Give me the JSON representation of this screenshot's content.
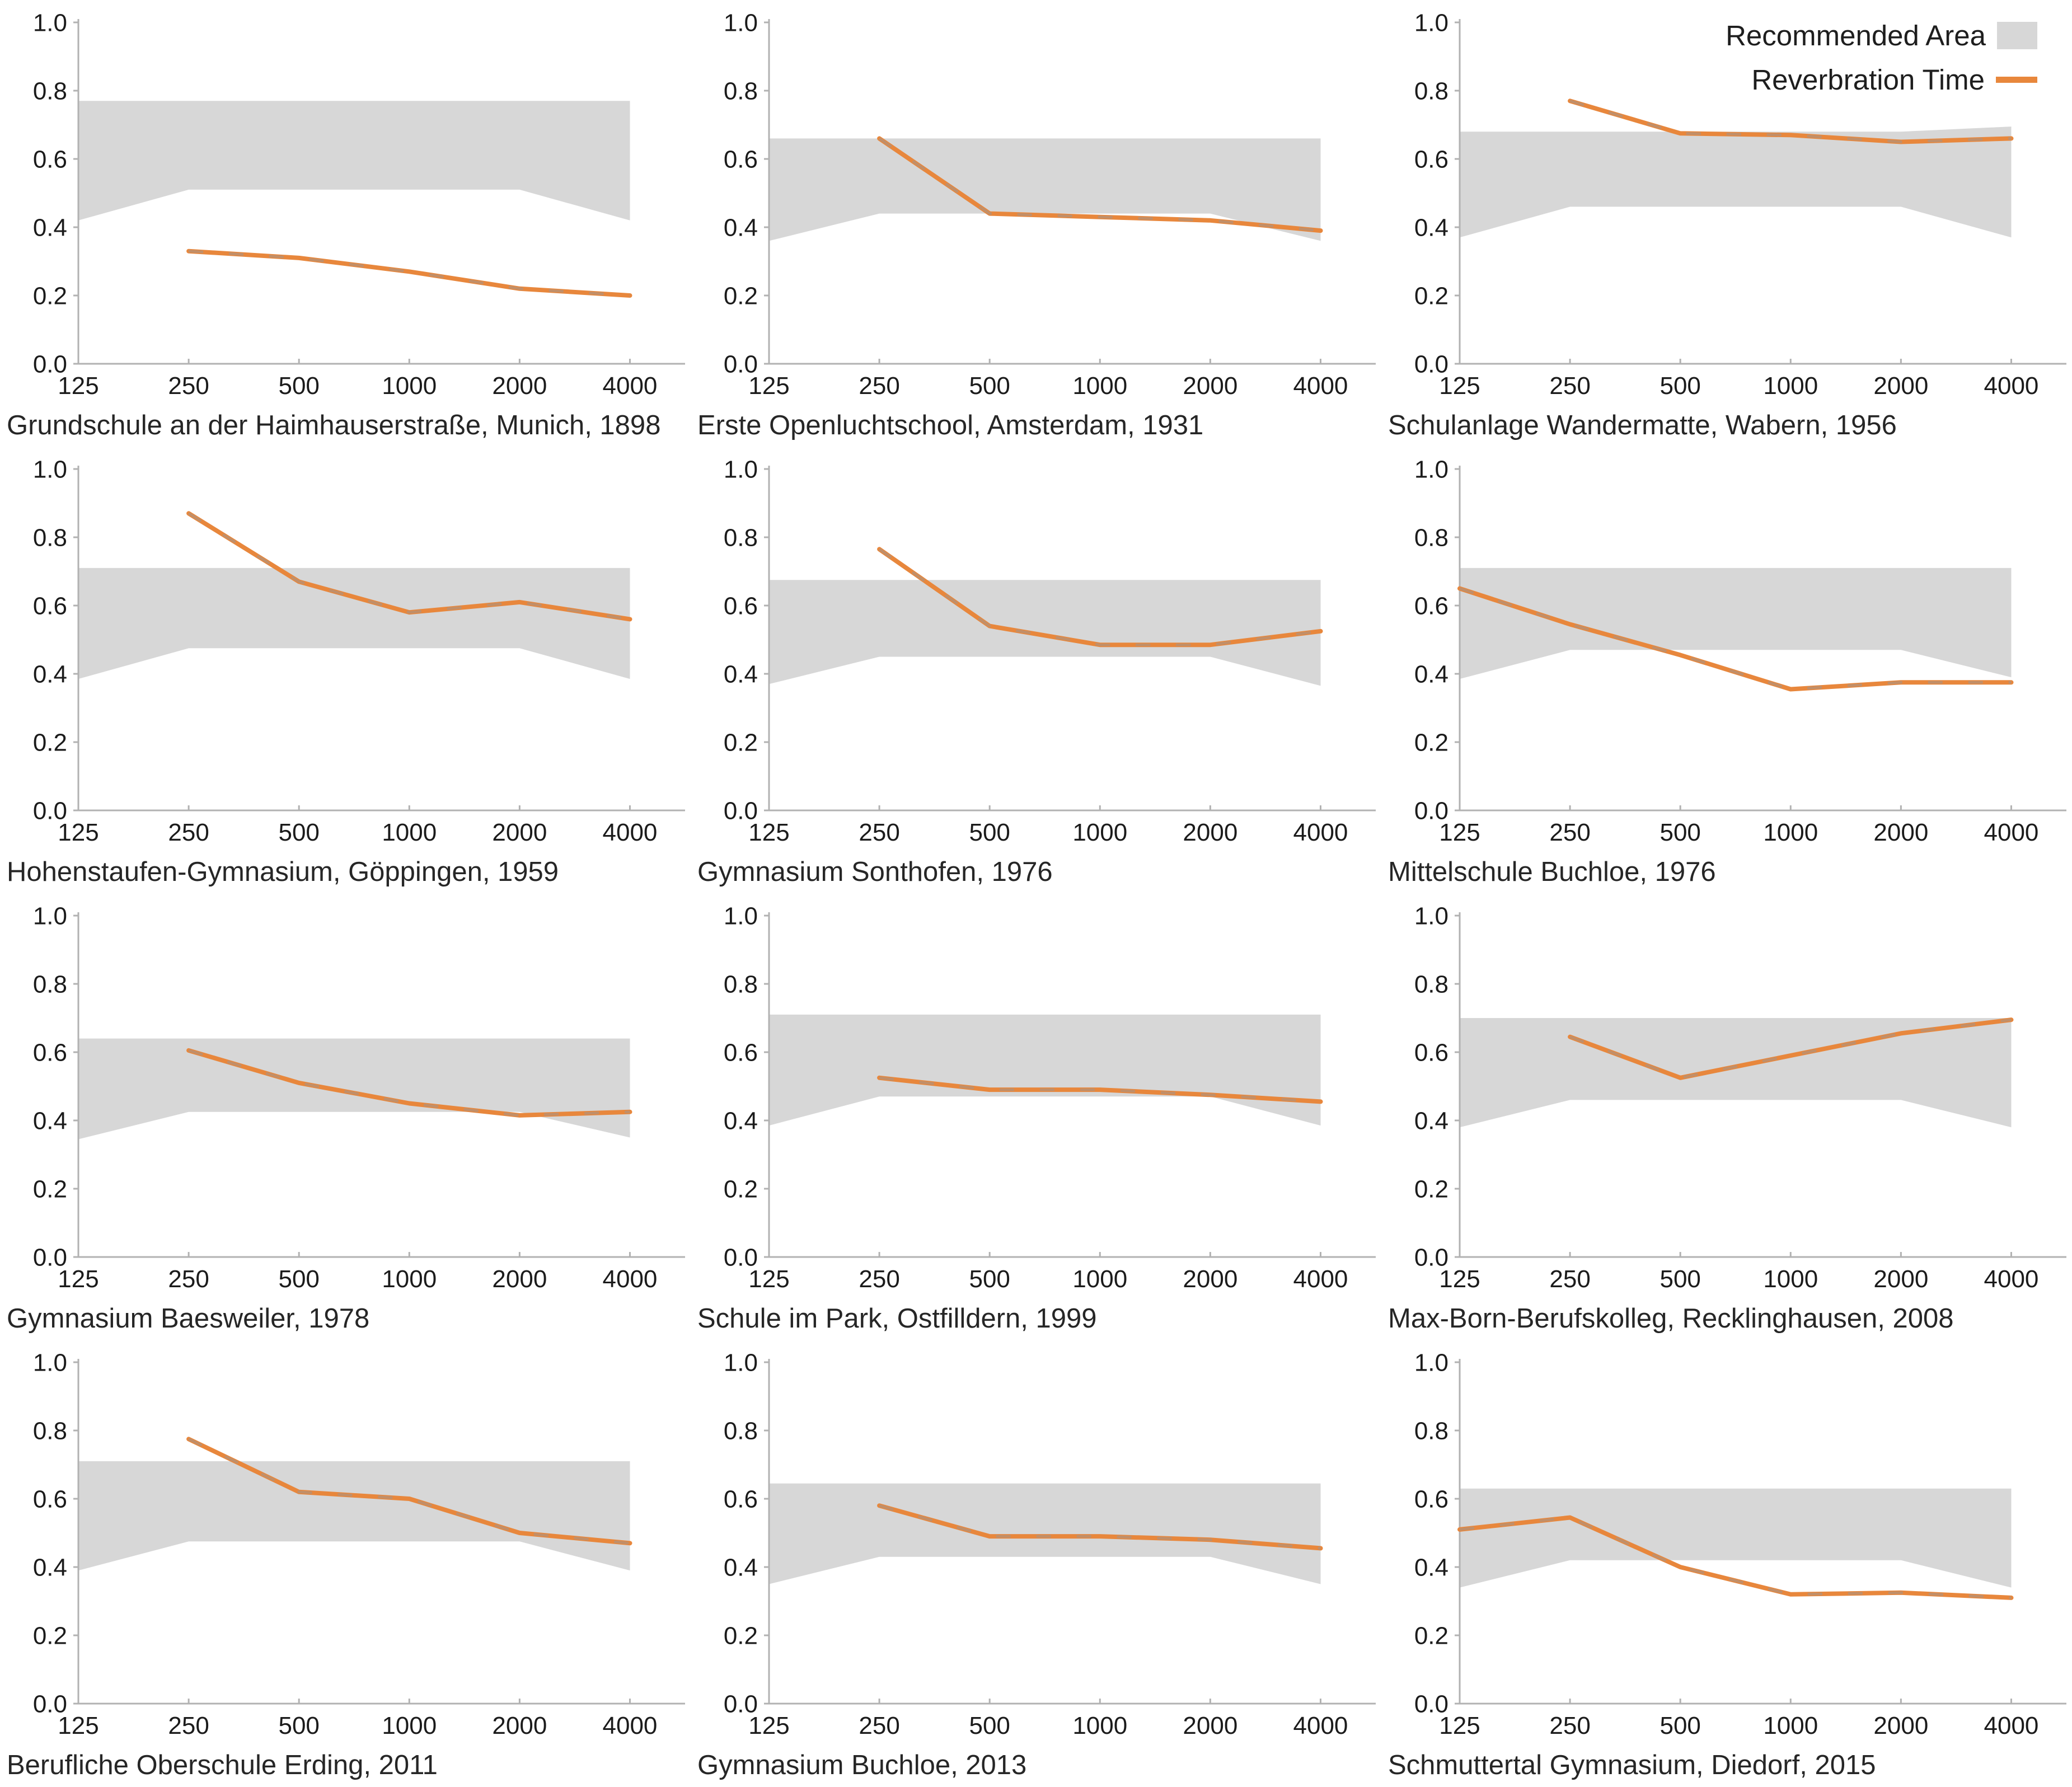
{
  "colors": {
    "band": "#d7d7d7",
    "line": "#e8873c",
    "line_dash_overlay": "#a3968c",
    "axis": "#b2b2b2",
    "tick_text": "#1b1b1b"
  },
  "legend": {
    "recommended_area_label": "Recommended Area",
    "reverberation_time_label": "Reverbration Time"
  },
  "chart_data": {
    "type": "area+line",
    "x_scale": "log2",
    "x": [
      125,
      250,
      500,
      1000,
      2000,
      4000
    ],
    "x_tick_labels": [
      "125",
      "250",
      "500",
      "1000",
      "2000",
      "4000"
    ],
    "y_ticks": [
      "0.0",
      "0.2",
      "0.4",
      "0.6",
      "0.8",
      "1.0"
    ],
    "ylim": [
      0.0,
      1.0
    ],
    "grid": "off",
    "legend_position": "top-right",
    "legend": {
      "recommended_area": {
        "label": "Recommended Area",
        "style": "gray-band"
      },
      "reverberation_time": {
        "label": "Reverbration Time",
        "style": "orange-line"
      }
    },
    "charts": [
      {
        "title": "Grundschule an der Haimhauserstraße, Munich, 1898",
        "band_upper": [
          0.77,
          0.77,
          0.77,
          0.77,
          0.77,
          0.77
        ],
        "band_lower": [
          0.42,
          0.51,
          0.51,
          0.51,
          0.51,
          0.42
        ],
        "line_x": [
          250,
          500,
          1000,
          2000,
          4000
        ],
        "line_y": [
          0.33,
          0.31,
          0.27,
          0.22,
          0.2
        ]
      },
      {
        "title": "Erste Openluchtschool, Amsterdam, 1931",
        "band_upper": [
          0.66,
          0.66,
          0.66,
          0.66,
          0.66,
          0.66
        ],
        "band_lower": [
          0.36,
          0.44,
          0.44,
          0.44,
          0.44,
          0.36
        ],
        "line_x": [
          250,
          500,
          1000,
          2000,
          4000
        ],
        "line_y": [
          0.66,
          0.44,
          0.43,
          0.42,
          0.39
        ]
      },
      {
        "title": "Schulanlage Wandermatte, Wabern, 1956",
        "band_upper": [
          0.68,
          0.68,
          0.68,
          0.68,
          0.68,
          0.695
        ],
        "band_lower": [
          0.37,
          0.46,
          0.46,
          0.46,
          0.46,
          0.37
        ],
        "line_x": [
          250,
          500,
          1000,
          2000,
          4000
        ],
        "line_y": [
          0.77,
          0.675,
          0.67,
          0.65,
          0.66
        ]
      },
      {
        "title": "Hohenstaufen-Gymnasium, Göppingen, 1959",
        "band_upper": [
          0.71,
          0.71,
          0.71,
          0.71,
          0.71,
          0.71
        ],
        "band_lower": [
          0.385,
          0.475,
          0.475,
          0.475,
          0.475,
          0.385
        ],
        "line_x": [
          250,
          500,
          1000,
          2000,
          4000
        ],
        "line_y": [
          0.87,
          0.67,
          0.58,
          0.61,
          0.56
        ]
      },
      {
        "title": "Gymnasium Sonthofen, 1976",
        "band_upper": [
          0.675,
          0.675,
          0.675,
          0.675,
          0.675,
          0.675
        ],
        "band_lower": [
          0.37,
          0.45,
          0.45,
          0.45,
          0.45,
          0.365
        ],
        "line_x": [
          250,
          500,
          1000,
          2000,
          4000
        ],
        "line_y": [
          0.765,
          0.54,
          0.485,
          0.485,
          0.525
        ]
      },
      {
        "title": "Mittelschule Buchloe, 1976",
        "band_upper": [
          0.71,
          0.71,
          0.71,
          0.71,
          0.71,
          0.71
        ],
        "band_lower": [
          0.385,
          0.47,
          0.47,
          0.47,
          0.47,
          0.39
        ],
        "line_x": [
          125,
          250,
          500,
          1000,
          2000,
          4000
        ],
        "line_y": [
          0.65,
          0.545,
          0.455,
          0.355,
          0.375,
          0.375
        ]
      },
      {
        "title": "Gymnasium Baesweiler, 1978",
        "band_upper": [
          0.64,
          0.64,
          0.64,
          0.64,
          0.64,
          0.64
        ],
        "band_lower": [
          0.345,
          0.425,
          0.425,
          0.425,
          0.425,
          0.35
        ],
        "line_x": [
          250,
          500,
          1000,
          2000,
          4000
        ],
        "line_y": [
          0.605,
          0.51,
          0.45,
          0.415,
          0.425
        ]
      },
      {
        "title": "Schule im Park, Ostfilldern, 1999",
        "band_upper": [
          0.71,
          0.71,
          0.71,
          0.71,
          0.71,
          0.71
        ],
        "band_lower": [
          0.385,
          0.47,
          0.47,
          0.47,
          0.47,
          0.385
        ],
        "line_x": [
          250,
          500,
          1000,
          2000,
          4000
        ],
        "line_y": [
          0.525,
          0.49,
          0.49,
          0.475,
          0.455
        ]
      },
      {
        "title": "Max-Born-Berufskolleg, Recklinghausen, 2008",
        "band_upper": [
          0.7,
          0.7,
          0.7,
          0.7,
          0.7,
          0.7
        ],
        "band_lower": [
          0.38,
          0.46,
          0.46,
          0.46,
          0.46,
          0.38
        ],
        "line_x": [
          250,
          500,
          1000,
          2000,
          4000
        ],
        "line_y": [
          0.645,
          0.525,
          0.59,
          0.655,
          0.695
        ]
      },
      {
        "title": "Berufliche Oberschule Erding, 2011",
        "band_upper": [
          0.71,
          0.71,
          0.71,
          0.71,
          0.71,
          0.71
        ],
        "band_lower": [
          0.39,
          0.475,
          0.475,
          0.475,
          0.475,
          0.39
        ],
        "line_x": [
          250,
          500,
          1000,
          2000,
          4000
        ],
        "line_y": [
          0.775,
          0.62,
          0.6,
          0.5,
          0.47
        ]
      },
      {
        "title": "Gymnasium Buchloe, 2013",
        "band_upper": [
          0.645,
          0.645,
          0.645,
          0.645,
          0.645,
          0.645
        ],
        "band_lower": [
          0.35,
          0.43,
          0.43,
          0.43,
          0.43,
          0.35
        ],
        "line_x": [
          250,
          500,
          1000,
          2000,
          4000
        ],
        "line_y": [
          0.58,
          0.49,
          0.49,
          0.48,
          0.455
        ]
      },
      {
        "title": "Schmuttertal Gymnasium, Diedorf, 2015",
        "band_upper": [
          0.63,
          0.63,
          0.63,
          0.63,
          0.63,
          0.63
        ],
        "band_lower": [
          0.34,
          0.42,
          0.42,
          0.42,
          0.42,
          0.34
        ],
        "line_x": [
          125,
          250,
          500,
          1000,
          2000,
          4000
        ],
        "line_y": [
          0.51,
          0.545,
          0.4,
          0.32,
          0.325,
          0.31
        ]
      }
    ]
  }
}
